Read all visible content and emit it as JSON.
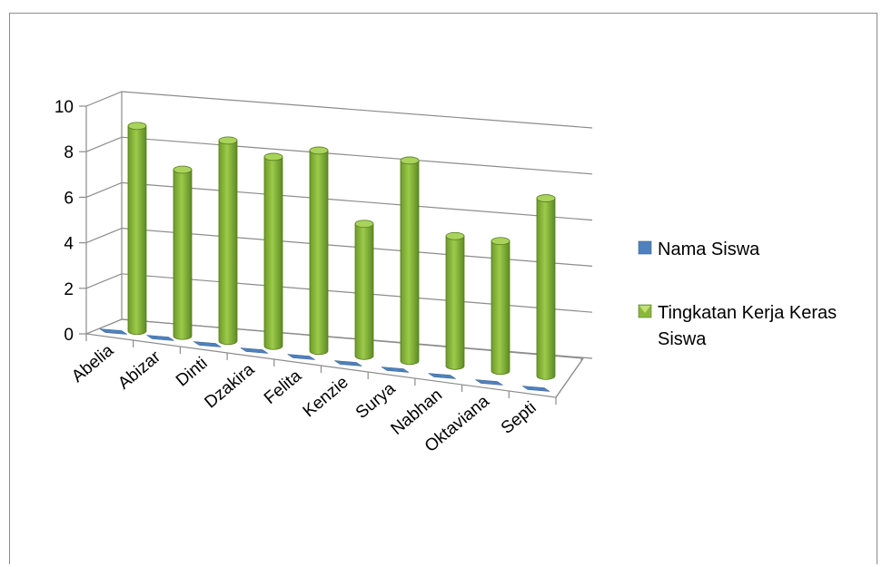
{
  "chart_data": {
    "type": "bar",
    "categories": [
      "Abelia",
      "Abizar",
      "Dinti",
      "Dzakira",
      "Felita",
      "Kenzie",
      "Surya",
      "Nabhan",
      "Oktaviana",
      "Septi"
    ],
    "series": [
      {
        "name": "Nama Siswa",
        "values": [
          0,
          0,
          0,
          0,
          0,
          0,
          0,
          0,
          0,
          0
        ],
        "color": "#4f81bd"
      },
      {
        "name": "Tingkatan Kerja Keras Siswa",
        "values": [
          9,
          7.3,
          8.8,
          8.3,
          8.8,
          5.8,
          8.8,
          5.7,
          5.7,
          7.8
        ],
        "color": "#8bb83a"
      }
    ],
    "yticks": [
      "0",
      "2",
      "4",
      "6",
      "8",
      "10"
    ],
    "ylim": [
      0,
      10
    ],
    "grid": true,
    "legend_position": "right",
    "legend_lines": [
      [
        "Nama Siswa"
      ],
      [
        "Tingkatan Kerja Keras",
        "Siswa"
      ]
    ]
  }
}
